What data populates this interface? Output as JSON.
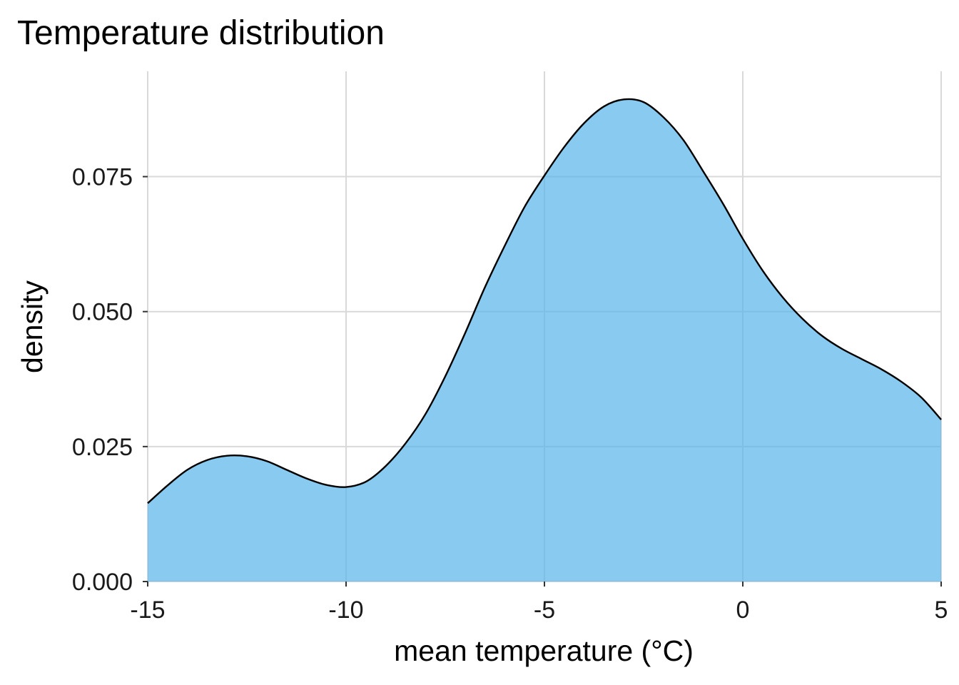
{
  "chart_data": {
    "type": "area",
    "title": "Temperature distribution",
    "xlabel": "mean temperature (°C)",
    "ylabel": "density",
    "xlim": [
      -15,
      5
    ],
    "ylim": [
      0,
      0.0945
    ],
    "xticks": [
      -15,
      -10,
      -5,
      0,
      5
    ],
    "xtick_labels": [
      "-15",
      "-10",
      "-5",
      "0",
      "5"
    ],
    "yticks": [
      0,
      0.025,
      0.05,
      0.075
    ],
    "ytick_labels": [
      "0.000",
      "0.025",
      "0.050",
      "0.075"
    ],
    "grid": true,
    "legend": "none",
    "series": [
      {
        "x": [
          -15,
          -14.5,
          -14,
          -13.5,
          -13,
          -12.5,
          -12,
          -11.5,
          -11,
          -10.5,
          -10,
          -9.5,
          -9,
          -8.5,
          -8,
          -7.5,
          -7,
          -6.5,
          -6,
          -5.5,
          -5,
          -4.5,
          -4,
          -3.5,
          -3,
          -2.5,
          -2,
          -1.5,
          -1,
          -0.5,
          0,
          0.5,
          1,
          1.5,
          2,
          2.5,
          3,
          3.5,
          4,
          4.5,
          5
        ],
        "y": [
          0.0145,
          0.0178,
          0.0207,
          0.0225,
          0.0233,
          0.0232,
          0.0223,
          0.0207,
          0.0191,
          0.0179,
          0.0175,
          0.0185,
          0.0214,
          0.0256,
          0.031,
          0.038,
          0.046,
          0.0545,
          0.0622,
          0.0694,
          0.0752,
          0.0805,
          0.0849,
          0.088,
          0.0893,
          0.0888,
          0.086,
          0.0818,
          0.076,
          0.07,
          0.0635,
          0.0576,
          0.0527,
          0.0487,
          0.0455,
          0.0431,
          0.0412,
          0.0393,
          0.037,
          0.0341,
          0.03
        ]
      }
    ],
    "colors": {
      "fill": "#56B4E9",
      "fill_opacity": 0.7,
      "line": "#000000"
    }
  }
}
